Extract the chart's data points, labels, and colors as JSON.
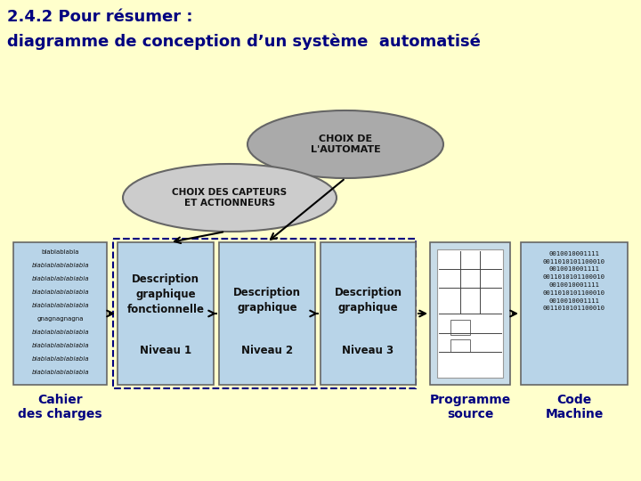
{
  "title_line1": "2.4.2 Pour résumer :",
  "title_line2": "diagramme de conception d’un système  automatisé",
  "bg_color": "#FFFFCC",
  "title_color": "#000080",
  "box_fill_light_blue": "#B8D4E8",
  "ellipse1_fill": "#AAAAAA",
  "ellipse2_fill": "#CCCCCC",
  "dashed_box_color": "#000080",
  "text_dark": "#111111",
  "ellipse1_text": "CHOIX DE\nL'AUTOMATE",
  "ellipse2_text": "CHOIX DES CAPTEURS\nET ACTIONNEURS",
  "cahier_lines": [
    "blablablabla",
    "blablablablablabla",
    "blablablablablabla",
    "blablablablablabla",
    "blablablablablabla",
    "gnagnagnagna",
    "blablablablablabla",
    "blablablablablabla",
    "blablablablablabla",
    "blablablablablabla"
  ],
  "cahier_label": "Cahier\ndes charges",
  "box1_title": "Description\ngraphique\nfonctionnelle",
  "box1_sub": "Niveau 1",
  "box2_title": "Description\ngraphique",
  "box2_sub": "Niveau 2",
  "box3_title": "Description\ngraphique",
  "box3_sub": "Niveau 3",
  "programme_label": "Programme\nsource",
  "code_lines": [
    "0010010001111",
    "0011010101100010",
    "0010010001111",
    "0011010101100010",
    "0010010001111",
    "0011010101100010",
    "0010010001111",
    "0011010101100010"
  ],
  "code_label": "Code\nMachine"
}
